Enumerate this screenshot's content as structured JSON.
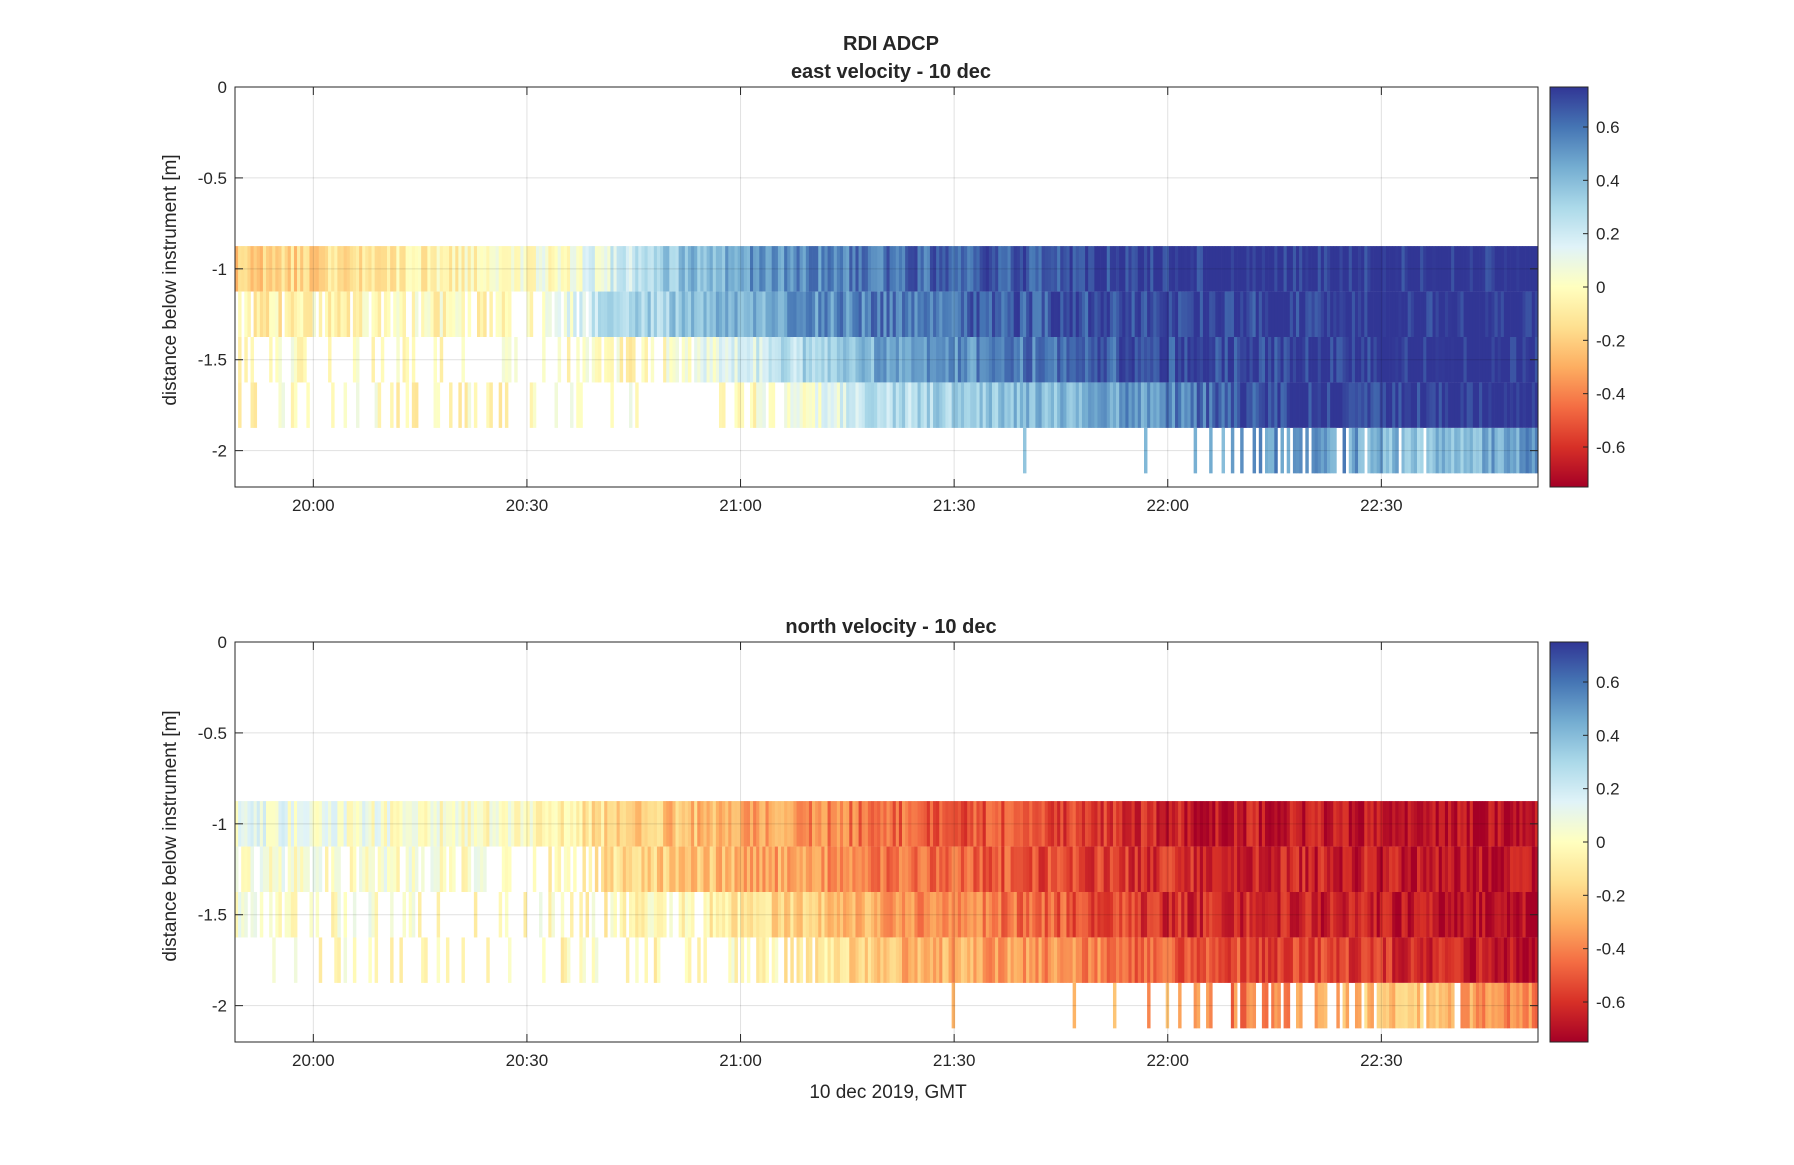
{
  "figure": {
    "suptitle": "RDI ADCP",
    "xlabel": "10 dec 2019, GMT"
  },
  "colormap": {
    "name": "diverging red-yellow-blue",
    "stops": [
      "#a50026",
      "#d73027",
      "#f46d43",
      "#fdae61",
      "#fee090",
      "#ffffbf",
      "#e0f3f8",
      "#abd9e9",
      "#74add1",
      "#4575b4",
      "#313695"
    ]
  },
  "chart_data": [
    {
      "type": "heatmap",
      "title": "east velocity - 10 dec",
      "xlabel": "",
      "ylabel": "distance below instrument [m]",
      "x_ticks": [
        "20:00",
        "20:30",
        "21:00",
        "21:30",
        "22:00",
        "22:30"
      ],
      "x_tick_minutes": [
        1200,
        1230,
        1260,
        1290,
        1320,
        1350
      ],
      "xlim_minutes": [
        1189,
        1372
      ],
      "ylim": [
        -2.2,
        0
      ],
      "y_ticks": [
        0,
        -0.5,
        -1,
        -1.5,
        -2
      ],
      "y_tick_labels": [
        "0",
        "-0.5",
        "-1",
        "-1.5",
        "-2"
      ],
      "clim": [
        -0.75,
        0.75
      ],
      "colorbar_ticks": [
        0.6,
        0.4,
        0.2,
        0,
        -0.2,
        -0.4,
        -0.6
      ],
      "colorbar_tick_labels": [
        "0.6",
        "0.4",
        "0.2",
        "0",
        "-0.2",
        "-0.4",
        "-0.6"
      ],
      "grid": true,
      "bins": [
        {
          "depth": -1.0,
          "keyframes": [
            [
              1189,
              -0.22,
              1.0
            ],
            [
              1200,
              -0.16,
              1.0
            ],
            [
              1215,
              -0.07,
              1.0
            ],
            [
              1225,
              -0.03,
              1.0
            ],
            [
              1236,
              0.05,
              1.0
            ],
            [
              1240,
              0.12,
              1.0
            ],
            [
              1250,
              0.35,
              1.0
            ],
            [
              1262,
              0.5,
              1.0
            ],
            [
              1280,
              0.6,
              1.0
            ],
            [
              1290,
              0.64,
              1.0
            ],
            [
              1310,
              0.72,
              1.0
            ],
            [
              1320,
              0.75,
              1.0
            ],
            [
              1372,
              0.78,
              1.0
            ]
          ]
        },
        {
          "depth": -1.25,
          "keyframes": [
            [
              1189,
              -0.1,
              0.8
            ],
            [
              1200,
              -0.05,
              0.7
            ],
            [
              1215,
              -0.03,
              0.6
            ],
            [
              1225,
              -0.02,
              0.5
            ],
            [
              1232,
              -0.02,
              0.3
            ],
            [
              1236,
              0.1,
              0.7
            ],
            [
              1240,
              0.25,
              1.0
            ],
            [
              1262,
              0.45,
              1.0
            ],
            [
              1280,
              0.58,
              1.0
            ],
            [
              1300,
              0.66,
              1.0
            ],
            [
              1320,
              0.72,
              1.0
            ],
            [
              1372,
              0.78,
              1.0
            ]
          ]
        },
        {
          "depth": -1.5,
          "keyframes": [
            [
              1189,
              -0.03,
              0.55
            ],
            [
              1200,
              -0.02,
              0.4
            ],
            [
              1225,
              -0.02,
              0.15
            ],
            [
              1236,
              0.0,
              0.3
            ],
            [
              1245,
              -0.02,
              0.7
            ],
            [
              1252,
              0.05,
              0.8
            ],
            [
              1260,
              0.15,
              1.0
            ],
            [
              1270,
              0.3,
              1.0
            ],
            [
              1280,
              0.45,
              1.0
            ],
            [
              1300,
              0.58,
              1.0
            ],
            [
              1320,
              0.68,
              1.0
            ],
            [
              1340,
              0.74,
              1.0
            ],
            [
              1372,
              0.78,
              1.0
            ]
          ]
        },
        {
          "depth": -1.75,
          "keyframes": [
            [
              1189,
              -0.02,
              0.05
            ],
            [
              1200,
              -0.02,
              0.3
            ],
            [
              1215,
              -0.02,
              0.35
            ],
            [
              1225,
              -0.02,
              0.15
            ],
            [
              1236,
              -0.02,
              0.3
            ],
            [
              1250,
              -0.01,
              0.15
            ],
            [
              1260,
              -0.01,
              0.6
            ],
            [
              1270,
              0.05,
              0.9
            ],
            [
              1280,
              0.25,
              1.0
            ],
            [
              1295,
              0.35,
              1.0
            ],
            [
              1310,
              0.45,
              1.0
            ],
            [
              1320,
              0.55,
              1.0
            ],
            [
              1335,
              0.72,
              1.0
            ],
            [
              1372,
              0.78,
              1.0
            ]
          ]
        },
        {
          "depth": -2.0,
          "keyframes": [
            [
              1189,
              0.2,
              0.0
            ],
            [
              1288,
              0.2,
              0.0
            ],
            [
              1290,
              0.25,
              0.04
            ],
            [
              1300,
              0.3,
              0.04
            ],
            [
              1320,
              0.4,
              0.04
            ],
            [
              1327,
              0.45,
              0.4
            ],
            [
              1340,
              0.55,
              0.7
            ],
            [
              1355,
              0.35,
              0.9
            ],
            [
              1365,
              0.45,
              1.0
            ],
            [
              1372,
              0.5,
              1.0
            ]
          ]
        }
      ]
    },
    {
      "type": "heatmap",
      "title": "north velocity - 10 dec",
      "xlabel": "10 dec 2019, GMT",
      "ylabel": "distance below instrument [m]",
      "x_ticks": [
        "20:00",
        "20:30",
        "21:00",
        "21:30",
        "22:00",
        "22:30"
      ],
      "x_tick_minutes": [
        1200,
        1230,
        1260,
        1290,
        1320,
        1350
      ],
      "xlim_minutes": [
        1189,
        1372
      ],
      "ylim": [
        -2.2,
        0
      ],
      "y_ticks": [
        0,
        -0.5,
        -1,
        -1.5,
        -2
      ],
      "y_tick_labels": [
        "0",
        "-0.5",
        "-1",
        "-1.5",
        "-2"
      ],
      "clim": [
        -0.75,
        0.75
      ],
      "colorbar_ticks": [
        0.6,
        0.4,
        0.2,
        0,
        -0.2,
        -0.4,
        -0.6
      ],
      "colorbar_tick_labels": [
        "0.6",
        "0.4",
        "0.2",
        "0",
        "-0.2",
        "-0.4",
        "-0.6"
      ],
      "grid": true,
      "bins": [
        {
          "depth": -1.0,
          "keyframes": [
            [
              1189,
              0.1,
              1.0
            ],
            [
              1200,
              0.08,
              1.0
            ],
            [
              1215,
              0.03,
              1.0
            ],
            [
              1230,
              0.0,
              1.0
            ],
            [
              1236,
              -0.08,
              1.0
            ],
            [
              1245,
              -0.2,
              1.0
            ],
            [
              1262,
              -0.3,
              1.0
            ],
            [
              1275,
              -0.42,
              1.0
            ],
            [
              1290,
              -0.5,
              1.0
            ],
            [
              1310,
              -0.58,
              1.0
            ],
            [
              1320,
              -0.65,
              1.0
            ],
            [
              1372,
              -0.72,
              1.0
            ]
          ]
        },
        {
          "depth": -1.25,
          "keyframes": [
            [
              1189,
              0.05,
              0.8
            ],
            [
              1200,
              0.03,
              0.7
            ],
            [
              1215,
              0.02,
              0.6
            ],
            [
              1225,
              0.01,
              0.5
            ],
            [
              1232,
              0.0,
              0.3
            ],
            [
              1236,
              -0.08,
              0.7
            ],
            [
              1245,
              -0.18,
              1.0
            ],
            [
              1262,
              -0.3,
              1.0
            ],
            [
              1280,
              -0.42,
              1.0
            ],
            [
              1300,
              -0.52,
              1.0
            ],
            [
              1320,
              -0.6,
              1.0
            ],
            [
              1372,
              -0.7,
              1.0
            ]
          ]
        },
        {
          "depth": -1.5,
          "keyframes": [
            [
              1189,
              0.03,
              0.55
            ],
            [
              1200,
              0.01,
              0.4
            ],
            [
              1225,
              0.0,
              0.15
            ],
            [
              1236,
              -0.02,
              0.3
            ],
            [
              1245,
              -0.03,
              0.7
            ],
            [
              1252,
              -0.05,
              0.8
            ],
            [
              1260,
              -0.1,
              1.0
            ],
            [
              1270,
              -0.2,
              1.0
            ],
            [
              1285,
              -0.35,
              1.0
            ],
            [
              1300,
              -0.45,
              1.0
            ],
            [
              1320,
              -0.6,
              1.0
            ],
            [
              1340,
              -0.65,
              1.0
            ],
            [
              1372,
              -0.72,
              1.0
            ]
          ]
        },
        {
          "depth": -1.75,
          "keyframes": [
            [
              1189,
              0.0,
              0.05
            ],
            [
              1200,
              -0.02,
              0.3
            ],
            [
              1215,
              -0.02,
              0.35
            ],
            [
              1225,
              0.0,
              0.15
            ],
            [
              1236,
              -0.02,
              0.3
            ],
            [
              1250,
              -0.02,
              0.15
            ],
            [
              1260,
              -0.03,
              0.6
            ],
            [
              1270,
              -0.08,
              0.9
            ],
            [
              1280,
              -0.25,
              1.0
            ],
            [
              1295,
              -0.32,
              1.0
            ],
            [
              1310,
              -0.4,
              1.0
            ],
            [
              1320,
              -0.5,
              1.0
            ],
            [
              1340,
              -0.55,
              1.0
            ],
            [
              1355,
              -0.62,
              1.0
            ],
            [
              1372,
              -0.72,
              1.0
            ]
          ]
        },
        {
          "depth": -2.0,
          "keyframes": [
            [
              1189,
              -0.1,
              0.0
            ],
            [
              1288,
              -0.1,
              0.0
            ],
            [
              1290,
              -0.2,
              0.04
            ],
            [
              1300,
              -0.25,
              0.04
            ],
            [
              1320,
              -0.3,
              0.04
            ],
            [
              1327,
              -0.45,
              0.4
            ],
            [
              1340,
              -0.3,
              0.7
            ],
            [
              1355,
              -0.2,
              0.9
            ],
            [
              1365,
              -0.35,
              1.0
            ],
            [
              1372,
              -0.4,
              1.0
            ]
          ]
        }
      ]
    }
  ]
}
